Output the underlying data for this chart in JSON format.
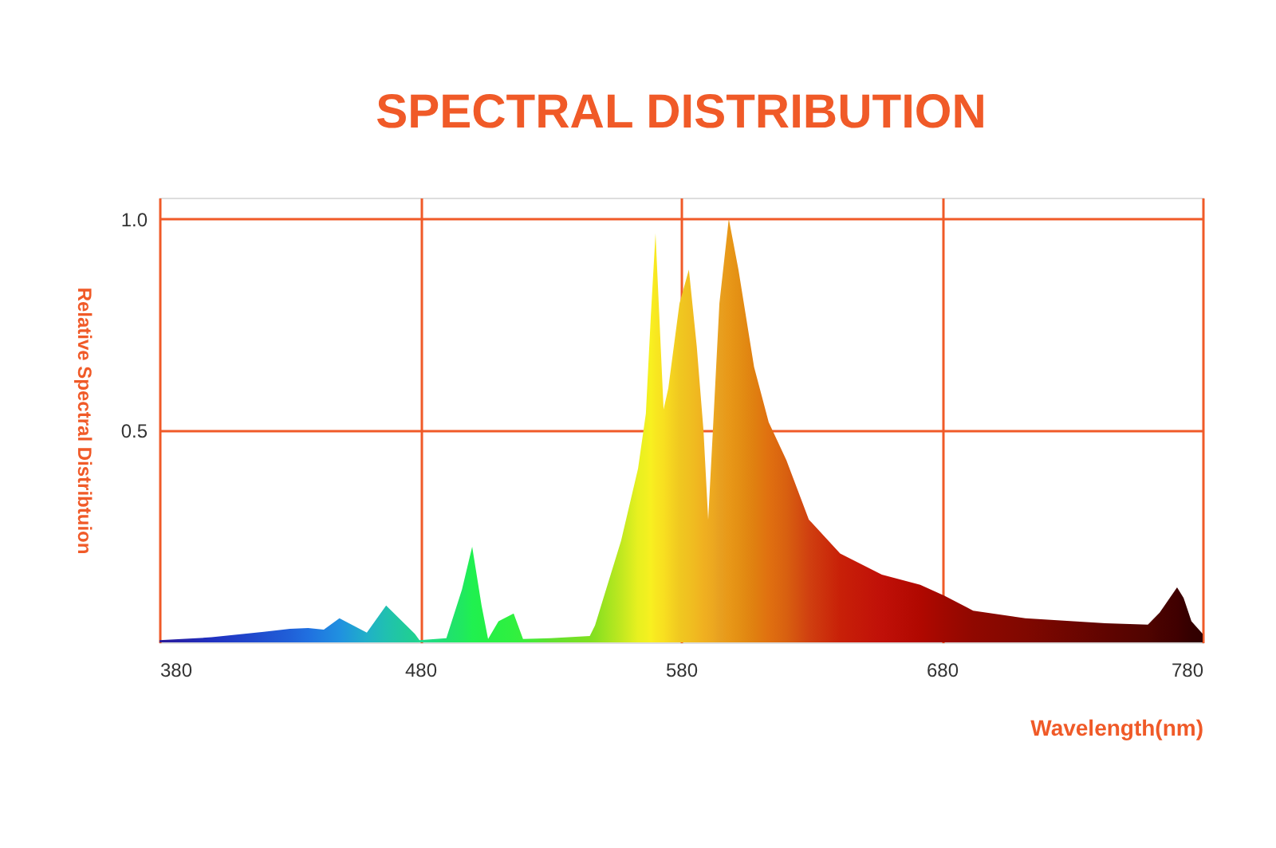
{
  "chart_data": {
    "type": "area",
    "title": "SPECTRAL DISTRIBUTION",
    "xlabel": "Wavelength(nm)",
    "ylabel": "Relative Spectral Distribtuion",
    "x": [
      380,
      400,
      420,
      430,
      437,
      443,
      449,
      459.5,
      466.9,
      477.9,
      479.7,
      490,
      496,
      499.9,
      503.5,
      506,
      510,
      515.8,
      519.4,
      530,
      545,
      547,
      557,
      563.5,
      566.5,
      568.4,
      570.2,
      573.3,
      575.1,
      579.4,
      583,
      586,
      588.6,
      590.4,
      592.2,
      594.7,
      598.3,
      602,
      608,
      613.6,
      620.4,
      629,
      641,
      657,
      671.7,
      681,
      692,
      712,
      742.7,
      759,
      763.5,
      770.2,
      772.7,
      775.7,
      780
    ],
    "series": [
      {
        "values": [
          0.005,
          0.012,
          0.025,
          0.032,
          0.034,
          0.03,
          0.057,
          0.023,
          0.087,
          0.02,
          0.005,
          0.01,
          0.125,
          0.226,
          0.087,
          0.008,
          0.05,
          0.068,
          0.008,
          0.01,
          0.015,
          0.04,
          0.24,
          0.41,
          0.54,
          0.77,
          0.966,
          0.55,
          0.6,
          0.8,
          0.88,
          0.7,
          0.5,
          0.29,
          0.5,
          0.8,
          1.0,
          0.88,
          0.65,
          0.52,
          0.43,
          0.29,
          0.21,
          0.16,
          0.136,
          0.11,
          0.075,
          0.057,
          0.045,
          0.042,
          0.07,
          0.13,
          0.105,
          0.05,
          0.02
        ],
        "colors": [
          "#2a1a9a",
          "#2030c0",
          "#2050d0",
          "#2060d8",
          "#2070e0",
          "#2080e0",
          "#2090e0",
          "#20b0c8",
          "#20c0b0",
          "#20d090",
          "#20d890",
          "#20e070",
          "#20e860",
          "#20f050",
          "#22f04a",
          "#26f046",
          "#2af044",
          "#30f040",
          "#38ee3c",
          "#60e030",
          "#80e020",
          "#88e020",
          "#c0e820",
          "#e8f020",
          "#f0f020",
          "#f8f020",
          "#f8e820",
          "#f8e020",
          "#f6d820",
          "#f0c820",
          "#f0c020",
          "#f0b820",
          "#f0b020",
          "#eeac20",
          "#eca820",
          "#e8a020",
          "#e89818",
          "#e49014",
          "#e08010",
          "#e07010",
          "#d86010",
          "#d04010",
          "#c82008",
          "#c01008",
          "#b00800",
          "#a00800",
          "#900800",
          "#800800",
          "#600400",
          "#500400",
          "#480200",
          "#400000",
          "#3a0000",
          "#340000",
          "#300000"
        ]
      }
    ],
    "xlim": [
      380,
      780
    ],
    "xticks": [
      380,
      480,
      580,
      680,
      780
    ],
    "ylim": [
      0,
      1.05
    ],
    "yticks": [
      0.5,
      {
        "value": 1,
        "label": "1.0"
      }
    ],
    "grid": true
  }
}
